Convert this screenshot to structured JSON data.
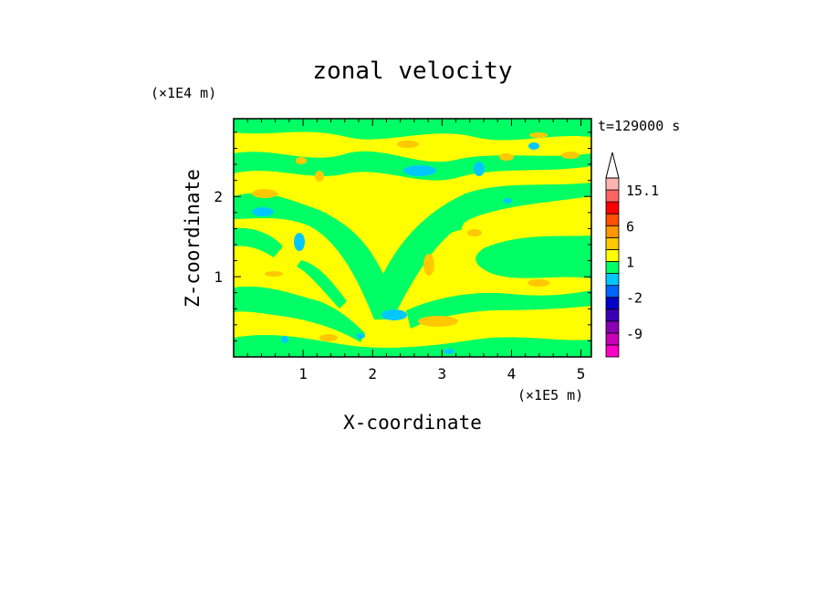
{
  "chart_data": {
    "type": "heatmap",
    "title": "zonal velocity",
    "xlabel": "X-coordinate",
    "ylabel": "Z-coordinate",
    "x_unit": "(×1E5 m)",
    "y_unit": "(×1E4 m)",
    "time_label": "t=129000 s",
    "xlim": [
      0,
      5.15
    ],
    "ylim": [
      0,
      2.97
    ],
    "x_ticks": [
      1,
      2,
      3,
      4,
      5
    ],
    "y_ticks": [
      1,
      2
    ],
    "x_tick_labels": [
      "1",
      "2",
      "3",
      "4",
      "5"
    ],
    "y_tick_labels": [
      "1",
      "2"
    ],
    "colorbar": {
      "levels": [
        -15,
        -12,
        -9,
        -6,
        -3,
        -2,
        -1,
        0,
        1,
        2,
        3,
        6,
        9,
        12,
        15.1
      ],
      "colors": [
        "#ff00c8",
        "#c800b4",
        "#8c00b4",
        "#3c00b4",
        "#0000c8",
        "#0064ff",
        "#00c8ff",
        "#00ff64",
        "#ffff00",
        "#ffc800",
        "#ff9600",
        "#ff5000",
        "#ff0000",
        "#ff6464",
        "#ffb4b4"
      ],
      "tick_labels": [
        "15.1",
        "6",
        "1",
        "-2",
        "-9"
      ],
      "tick_values": [
        15.1,
        6,
        1,
        -2,
        -9
      ]
    },
    "field_description_colors": {
      "background": "#ffff00",
      "band": "#00ff64",
      "orange": "#ffc800",
      "cyan": "#00c8ff"
    }
  }
}
